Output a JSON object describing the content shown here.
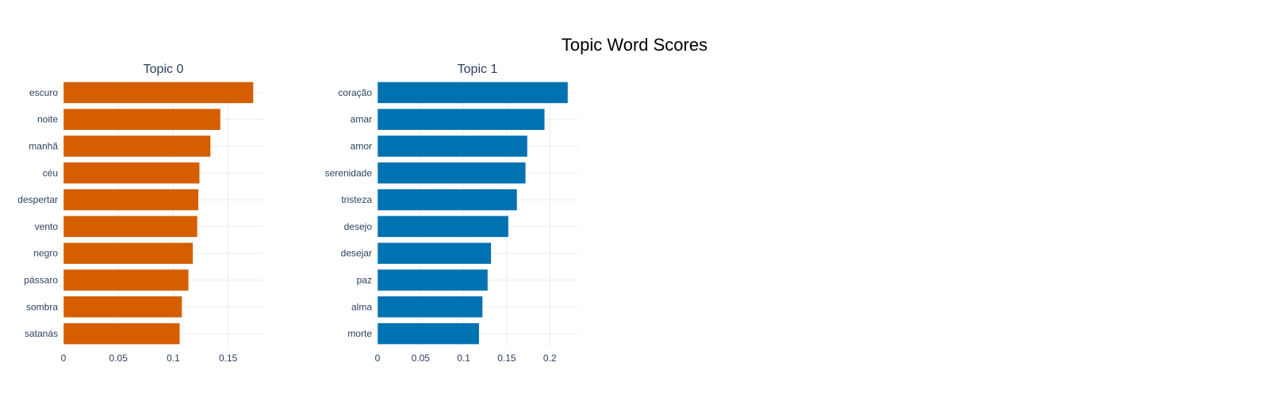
{
  "title": "Topic Word Scores",
  "chart_data": [
    {
      "type": "bar",
      "orientation": "horizontal",
      "title": "Topic 0",
      "color": "#D55E00",
      "categories": [
        "escuro",
        "noite",
        "manhã",
        "céu",
        "despertar",
        "vento",
        "negro",
        "pássaro",
        "sombra",
        "satanás"
      ],
      "values": [
        0.173,
        0.143,
        0.134,
        0.124,
        0.123,
        0.122,
        0.118,
        0.114,
        0.108,
        0.106
      ],
      "xlim": [
        0,
        0.182
      ],
      "xticks": [
        0,
        0.05,
        0.1,
        0.15
      ],
      "xtick_labels": [
        "0",
        "0.05",
        "0.1",
        "0.15"
      ],
      "grid": true
    },
    {
      "type": "bar",
      "orientation": "horizontal",
      "title": "Topic 1",
      "color": "#0072B2",
      "categories": [
        "coração",
        "amar",
        "amor",
        "serenidade",
        "tristeza",
        "desejo",
        "desejar",
        "paz",
        "alma",
        "morte"
      ],
      "values": [
        0.221,
        0.194,
        0.174,
        0.172,
        0.162,
        0.152,
        0.132,
        0.128,
        0.122,
        0.118
      ],
      "xlim": [
        0,
        0.232
      ],
      "xticks": [
        0,
        0.05,
        0.1,
        0.15,
        0.2
      ],
      "xtick_labels": [
        "0",
        "0.05",
        "0.1",
        "0.15",
        "0.2"
      ],
      "grid": true
    }
  ]
}
